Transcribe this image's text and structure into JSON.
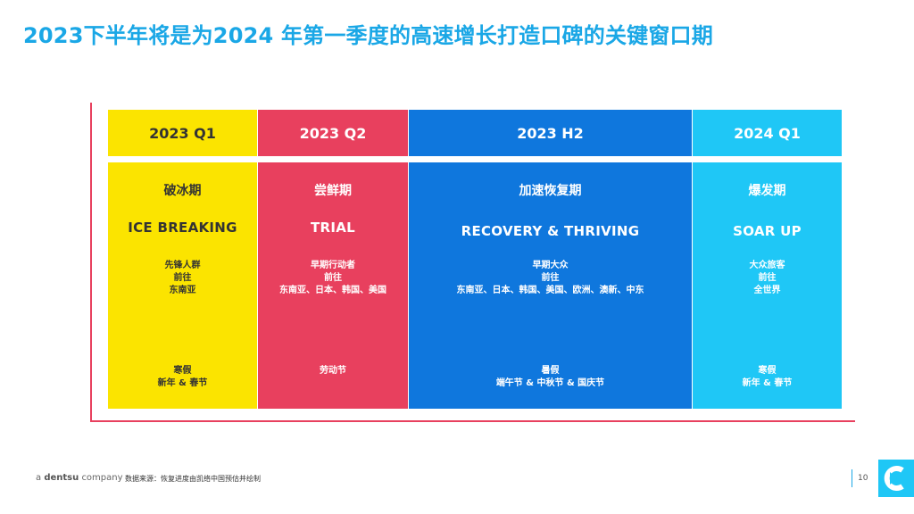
{
  "title": "2023下半年将是为2024 年第一季度的高速增长打造口碑的关键窗口期",
  "columns": [
    {
      "period": "2023 Q1",
      "stage_cn": "破冰期",
      "stage_en": "ICE BREAKING",
      "audience": [
        "先锋人群",
        "前往",
        "东南亚"
      ],
      "holidays": [
        "寒假",
        "新年 & 春节"
      ],
      "color": "#fbe400"
    },
    {
      "period": "2023 Q2",
      "stage_cn": "尝鲜期",
      "stage_en": "TRIAL",
      "audience": [
        "早期行动者",
        "前往",
        "东南亚、日本、韩国、美国"
      ],
      "holidays": [
        "劳动节"
      ],
      "color": "#e8405e"
    },
    {
      "period": "2023 H2",
      "stage_cn": "加速恢复期",
      "stage_en": "RECOVERY & THRIVING",
      "audience": [
        "早期大众",
        "前往",
        "东南亚、日本、韩国、美国、欧洲、澳新、中东"
      ],
      "holidays": [
        "暑假",
        "端午节 & 中秋节 & 国庆节"
      ],
      "color": "#0f77dd"
    },
    {
      "period": "2024 Q1",
      "stage_cn": "爆发期",
      "stage_en": "SOAR UP",
      "audience": [
        "大众旅客",
        "前往",
        "全世界"
      ],
      "holidays": [
        "寒假",
        "新年 & 春节"
      ],
      "color": "#1fc7f6"
    }
  ],
  "footer": {
    "brand_prefix": "a",
    "brand_name": "dentsu",
    "brand_suffix": "company",
    "source": "数据来源：恢复进度由凯络中国预估并绘制",
    "page_number": "10"
  }
}
